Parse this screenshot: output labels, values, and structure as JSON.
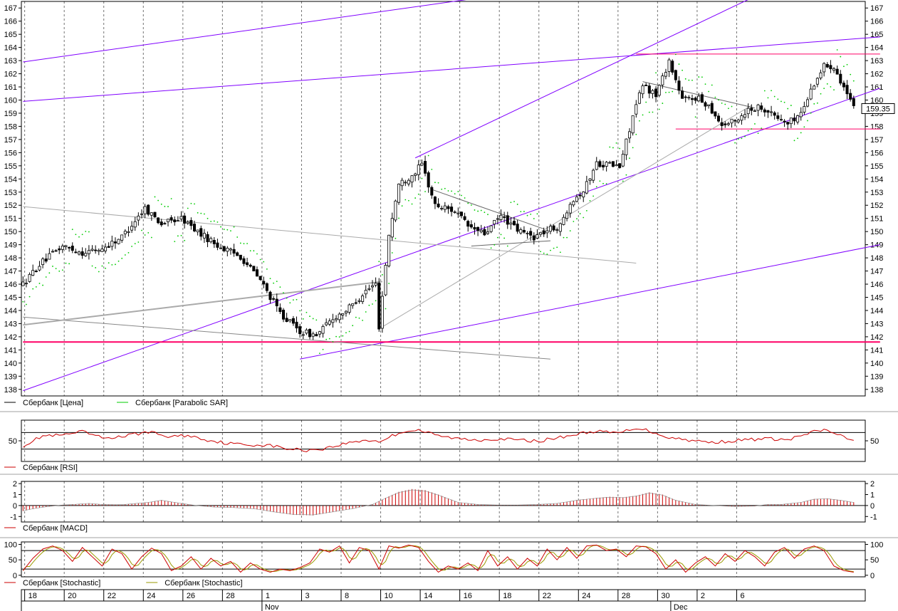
{
  "chart_data": [
    {
      "panel": "price",
      "type": "candlestick",
      "ylim": [
        137.5,
        167.5
      ],
      "yticks": [
        138,
        139,
        140,
        141,
        142,
        143,
        144,
        145,
        146,
        147,
        148,
        149,
        150,
        151,
        152,
        153,
        154,
        155,
        156,
        157,
        158,
        159,
        160,
        161,
        162,
        163,
        164,
        165,
        166,
        167
      ],
      "last_price_label": "159.35",
      "series": [
        {
          "name": "Сбербанк [Цена]",
          "color": "#000000"
        },
        {
          "name": "Сбербанк [Parabolic SAR]",
          "color": "#00cc00"
        }
      ],
      "anchors": [
        [
          0,
          146.0
        ],
        [
          5,
          147.5
        ],
        [
          12,
          148.9
        ],
        [
          18,
          148.4
        ],
        [
          24,
          148.7
        ],
        [
          30,
          149.6
        ],
        [
          37,
          151.8
        ],
        [
          42,
          150.6
        ],
        [
          48,
          151.0
        ],
        [
          54,
          149.8
        ],
        [
          60,
          148.8
        ],
        [
          66,
          148.1
        ],
        [
          72,
          146.3
        ],
        [
          78,
          143.8
        ],
        [
          84,
          142.4
        ],
        [
          89,
          142.1
        ],
        [
          94,
          143.4
        ],
        [
          99,
          144.2
        ],
        [
          104,
          145.5
        ],
        [
          107,
          146.0
        ],
        [
          108,
          142.8
        ],
        [
          111,
          149.8
        ],
        [
          114,
          153.6
        ],
        [
          118,
          154.3
        ],
        [
          121,
          155.1
        ],
        [
          125,
          152.0
        ],
        [
          131,
          151.6
        ],
        [
          135,
          150.4
        ],
        [
          140,
          149.8
        ],
        [
          145,
          151.2
        ],
        [
          150,
          150.1
        ],
        [
          155,
          149.6
        ],
        [
          160,
          150.2
        ],
        [
          163,
          150.4
        ],
        [
          166,
          152.3
        ],
        [
          170,
          153.1
        ],
        [
          174,
          155.2
        ],
        [
          178,
          155.1
        ],
        [
          181,
          154.9
        ],
        [
          185,
          158.8
        ],
        [
          188,
          161.1
        ],
        [
          192,
          160.4
        ],
        [
          196,
          163.0
        ],
        [
          200,
          160.0
        ],
        [
          204,
          160.2
        ],
        [
          208,
          159.6
        ],
        [
          212,
          158.1
        ],
        [
          216,
          158.4
        ],
        [
          220,
          159.3
        ],
        [
          224,
          159.5
        ],
        [
          228,
          158.8
        ],
        [
          232,
          158.2
        ],
        [
          236,
          159.0
        ],
        [
          240,
          161.3
        ],
        [
          243,
          162.6
        ],
        [
          246,
          162.6
        ],
        [
          249,
          161.0
        ],
        [
          252,
          159.35
        ]
      ],
      "trendlines": [
        {
          "x": [
            0,
            142
          ],
          "y": [
            162.9,
            167.9
          ],
          "color": "#8000ff"
        },
        {
          "x": [
            0,
            260
          ],
          "y": [
            159.9,
            164.8
          ],
          "color": "#8000ff"
        },
        {
          "x": [
            119,
            223
          ],
          "y": [
            155.6,
            168.0
          ],
          "color": "#8000ff"
        },
        {
          "x": [
            0,
            260
          ],
          "y": [
            137.9,
            160.9
          ],
          "color": "#8000ff"
        },
        {
          "x": [
            84,
            260
          ],
          "y": [
            140.3,
            149.0
          ],
          "color": "#8000ff"
        },
        {
          "x": [
            0,
            260
          ],
          "y": [
            141.6,
            141.6
          ],
          "color": "#ff0066",
          "width": 2
        },
        {
          "x": [
            186,
            260
          ],
          "y": [
            163.5,
            163.5
          ],
          "color": "#ff0066"
        },
        {
          "x": [
            198,
            260
          ],
          "y": [
            157.8,
            157.8
          ],
          "color": "#ff0066"
        },
        {
          "x": [
            0,
            186
          ],
          "y": [
            151.9,
            147.6
          ],
          "color": "#aaaaaa"
        },
        {
          "x": [
            0,
            160
          ],
          "y": [
            143.5,
            140.3
          ],
          "color": "#888888"
        },
        {
          "x": [
            0,
            109
          ],
          "y": [
            142.9,
            146.2
          ],
          "color": "#aaaaaa",
          "width": 2
        },
        {
          "x": [
            108,
            221
          ],
          "y": [
            142.6,
            159.6
          ],
          "color": "#aaaaaa"
        },
        {
          "x": [
            124,
            158
          ],
          "y": [
            153.2,
            150.2
          ],
          "color": "#666666"
        },
        {
          "x": [
            136,
            160
          ],
          "y": [
            148.9,
            149.3
          ],
          "color": "#666666"
        },
        {
          "x": [
            188,
            222
          ],
          "y": [
            161.4,
            159.4
          ],
          "color": "#666666"
        }
      ]
    },
    {
      "panel": "rsi",
      "type": "line",
      "ylim": [
        0,
        100
      ],
      "yticks": [
        50
      ],
      "levels": [
        30,
        70
      ],
      "series": [
        {
          "name": "Сбербанк [RSI]",
          "color": "#cc0000"
        }
      ],
      "anchors": [
        [
          0,
          38
        ],
        [
          6,
          62
        ],
        [
          12,
          63
        ],
        [
          18,
          72
        ],
        [
          24,
          57
        ],
        [
          30,
          60
        ],
        [
          38,
          72
        ],
        [
          44,
          60
        ],
        [
          50,
          63
        ],
        [
          56,
          52
        ],
        [
          62,
          44
        ],
        [
          68,
          40
        ],
        [
          74,
          40
        ],
        [
          80,
          31
        ],
        [
          86,
          27
        ],
        [
          92,
          32
        ],
        [
          98,
          44
        ],
        [
          104,
          52
        ],
        [
          108,
          48
        ],
        [
          112,
          62
        ],
        [
          116,
          74
        ],
        [
          120,
          76
        ],
        [
          126,
          62
        ],
        [
          132,
          55
        ],
        [
          138,
          52
        ],
        [
          144,
          55
        ],
        [
          150,
          52
        ],
        [
          156,
          49
        ],
        [
          162,
          57
        ],
        [
          168,
          66
        ],
        [
          174,
          74
        ],
        [
          178,
          69
        ],
        [
          182,
          71
        ],
        [
          186,
          82
        ],
        [
          190,
          74
        ],
        [
          196,
          58
        ],
        [
          202,
          52
        ],
        [
          208,
          46
        ],
        [
          214,
          49
        ],
        [
          220,
          53
        ],
        [
          226,
          55
        ],
        [
          232,
          52
        ],
        [
          236,
          62
        ],
        [
          240,
          72
        ],
        [
          243,
          76
        ],
        [
          246,
          70
        ],
        [
          249,
          58
        ],
        [
          252,
          48
        ]
      ]
    },
    {
      "panel": "macd",
      "type": "histogram",
      "ylim": [
        -1.5,
        2.2
      ],
      "yticks": [
        -1,
        0,
        1,
        2
      ],
      "series": [
        {
          "name": "Сбербанк [MACD]",
          "color": "#cc0000"
        }
      ],
      "anchors": [
        [
          0,
          -0.5
        ],
        [
          4,
          -0.25
        ],
        [
          8,
          -0.08
        ],
        [
          12,
          0.05
        ],
        [
          16,
          0.12
        ],
        [
          20,
          0.2
        ],
        [
          24,
          0.1
        ],
        [
          30,
          0.08
        ],
        [
          38,
          0.3
        ],
        [
          42,
          0.5
        ],
        [
          46,
          0.3
        ],
        [
          52,
          0.02
        ],
        [
          58,
          -0.15
        ],
        [
          64,
          -0.2
        ],
        [
          70,
          -0.3
        ],
        [
          76,
          -0.6
        ],
        [
          82,
          -0.85
        ],
        [
          88,
          -0.9
        ],
        [
          94,
          -0.6
        ],
        [
          100,
          -0.3
        ],
        [
          106,
          0.1
        ],
        [
          110,
          0.7
        ],
        [
          114,
          1.25
        ],
        [
          118,
          1.5
        ],
        [
          122,
          1.4
        ],
        [
          126,
          1.0
        ],
        [
          132,
          0.3
        ],
        [
          138,
          0.1
        ],
        [
          144,
          0.05
        ],
        [
          150,
          0.05
        ],
        [
          156,
          0.1
        ],
        [
          162,
          0.2
        ],
        [
          168,
          0.5
        ],
        [
          174,
          0.7
        ],
        [
          178,
          0.8
        ],
        [
          182,
          0.75
        ],
        [
          186,
          0.9
        ],
        [
          190,
          1.2
        ],
        [
          194,
          1.0
        ],
        [
          198,
          0.5
        ],
        [
          204,
          0.1
        ],
        [
          210,
          0.0
        ],
        [
          216,
          -0.1
        ],
        [
          222,
          -0.05
        ],
        [
          226,
          0.1
        ],
        [
          230,
          0.1
        ],
        [
          236,
          0.3
        ],
        [
          240,
          0.6
        ],
        [
          244,
          0.65
        ],
        [
          248,
          0.5
        ],
        [
          252,
          0.3
        ]
      ]
    },
    {
      "panel": "stochastic",
      "type": "line",
      "ylim": [
        -5,
        108
      ],
      "yticks": [
        0,
        50,
        100
      ],
      "levels": [
        20,
        80
      ],
      "series": [
        {
          "name": "Сбербанк [Stochastic]",
          "color": "#cc0000"
        },
        {
          "name": "Сбербанк [Stochastic]",
          "color": "#999900"
        }
      ],
      "anchors": [
        [
          0,
          15
        ],
        [
          3,
          55
        ],
        [
          6,
          85
        ],
        [
          9,
          95
        ],
        [
          12,
          80
        ],
        [
          15,
          45
        ],
        [
          18,
          90
        ],
        [
          21,
          60
        ],
        [
          24,
          30
        ],
        [
          27,
          85
        ],
        [
          30,
          70
        ],
        [
          33,
          20
        ],
        [
          36,
          60
        ],
        [
          39,
          88
        ],
        [
          42,
          70
        ],
        [
          45,
          15
        ],
        [
          48,
          30
        ],
        [
          51,
          60
        ],
        [
          54,
          20
        ],
        [
          57,
          55
        ],
        [
          60,
          30
        ],
        [
          63,
          45
        ],
        [
          66,
          10
        ],
        [
          69,
          40
        ],
        [
          72,
          20
        ],
        [
          75,
          10
        ],
        [
          78,
          20
        ],
        [
          81,
          15
        ],
        [
          84,
          25
        ],
        [
          87,
          40
        ],
        [
          90,
          85
        ],
        [
          93,
          75
        ],
        [
          96,
          95
        ],
        [
          99,
          40
        ],
        [
          102,
          90
        ],
        [
          105,
          80
        ],
        [
          108,
          20
        ],
        [
          111,
          95
        ],
        [
          114,
          88
        ],
        [
          117,
          98
        ],
        [
          120,
          90
        ],
        [
          123,
          45
        ],
        [
          126,
          10
        ],
        [
          129,
          30
        ],
        [
          132,
          20
        ],
        [
          135,
          40
        ],
        [
          138,
          15
        ],
        [
          141,
          80
        ],
        [
          144,
          30
        ],
        [
          147,
          60
        ],
        [
          150,
          20
        ],
        [
          153,
          55
        ],
        [
          156,
          30
        ],
        [
          159,
          85
        ],
        [
          162,
          50
        ],
        [
          165,
          90
        ],
        [
          168,
          55
        ],
        [
          171,
          95
        ],
        [
          174,
          98
        ],
        [
          177,
          80
        ],
        [
          180,
          85
        ],
        [
          183,
          60
        ],
        [
          186,
          95
        ],
        [
          189,
          92
        ],
        [
          192,
          70
        ],
        [
          195,
          20
        ],
        [
          198,
          50
        ],
        [
          201,
          10
        ],
        [
          204,
          40
        ],
        [
          207,
          60
        ],
        [
          210,
          30
        ],
        [
          213,
          70
        ],
        [
          216,
          45
        ],
        [
          219,
          80
        ],
        [
          222,
          60
        ],
        [
          225,
          30
        ],
        [
          228,
          75
        ],
        [
          231,
          90
        ],
        [
          234,
          55
        ],
        [
          237,
          85
        ],
        [
          240,
          95
        ],
        [
          243,
          80
        ],
        [
          246,
          30
        ],
        [
          249,
          15
        ],
        [
          252,
          10
        ]
      ]
    }
  ],
  "x_axis": {
    "day_labels": [
      {
        "text": "18",
        "bar": 1
      },
      {
        "text": "20",
        "bar": 13
      },
      {
        "text": "22",
        "bar": 25
      },
      {
        "text": "24",
        "bar": 37
      },
      {
        "text": "26",
        "bar": 49
      },
      {
        "text": "28",
        "bar": 61
      },
      {
        "text": "1",
        "bar": 73
      },
      {
        "text": "3",
        "bar": 85
      },
      {
        "text": "8",
        "bar": 97
      },
      {
        "text": "10",
        "bar": 109
      },
      {
        "text": "14",
        "bar": 121
      },
      {
        "text": "16",
        "bar": 133
      },
      {
        "text": "18",
        "bar": 145
      },
      {
        "text": "22",
        "bar": 157
      },
      {
        "text": "24",
        "bar": 169
      },
      {
        "text": "28",
        "bar": 181
      },
      {
        "text": "30",
        "bar": 193
      },
      {
        "text": "2",
        "bar": 205
      },
      {
        "text": "6",
        "bar": 217
      }
    ],
    "month_labels": [
      {
        "text": "Nov",
        "bar": 73
      },
      {
        "text": "Dec",
        "bar": 197
      }
    ]
  }
}
